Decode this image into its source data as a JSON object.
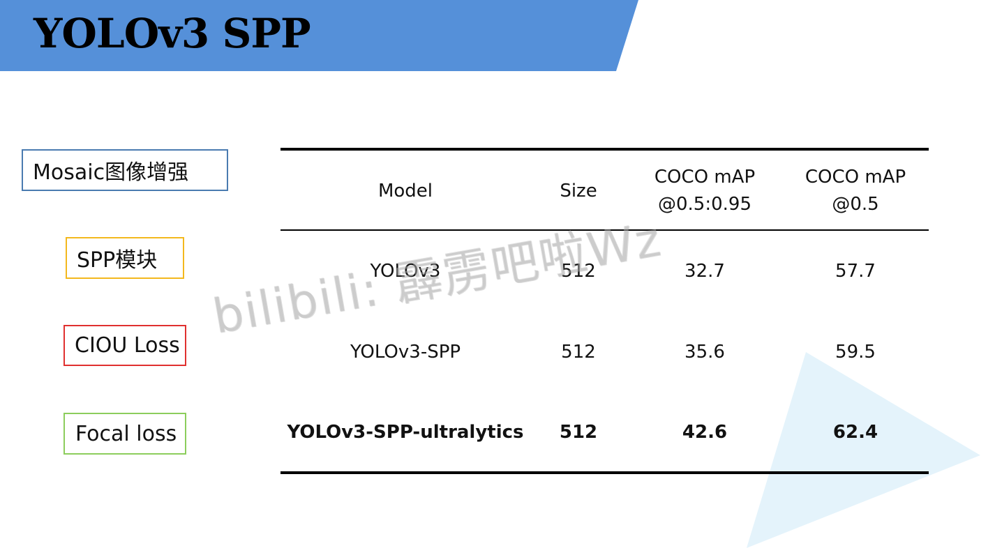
{
  "slide": {
    "title": "YOLOv3 SPP",
    "banner_color": "#5590d9",
    "watermark": "bilibili: 霹雳吧啦Wz"
  },
  "tags": [
    {
      "label": "Mosaic图像增强",
      "border_color": "#4a7bb0"
    },
    {
      "label": "SPP模块",
      "border_color": "#f3b81d"
    },
    {
      "label": "CIOU Loss",
      "border_color": "#e0302f"
    },
    {
      "label": "Focal loss",
      "border_color": "#8ccd5c"
    }
  ],
  "table": {
    "headers": {
      "model": "Model",
      "size": "Size",
      "map_95_line1": "COCO mAP",
      "map_95_line2": "@0.5:0.95",
      "map_50_line1": "COCO mAP",
      "map_50_line2": "@0.5"
    },
    "rows": [
      {
        "model": "YOLOv3",
        "size": "512",
        "map_95": "32.7",
        "map_50": "57.7"
      },
      {
        "model": "YOLOv3-SPP",
        "size": "512",
        "map_95": "35.6",
        "map_50": "59.5"
      },
      {
        "model": "YOLOv3-SPP-ultralytics",
        "size": "512",
        "map_95": "42.6",
        "map_50": "62.4"
      }
    ]
  }
}
